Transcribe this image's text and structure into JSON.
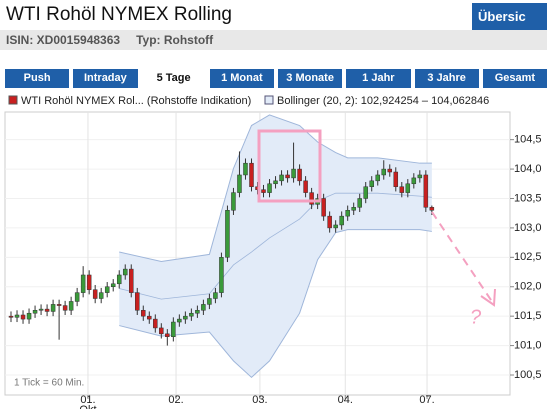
{
  "header": {
    "title": "WTI Rohöl NYMEX Rolling",
    "button": "Übersic",
    "isin": "ISIN: XD0015948363",
    "typ": "Typ: Rohstoff"
  },
  "tabs": {
    "items": [
      "Push",
      "Intraday",
      "5 Tage",
      "1 Monat",
      "3 Monate",
      "1 Jahr",
      "3 Jahre",
      "Gesamt"
    ],
    "active": 2
  },
  "chart_data": {
    "type": "candlestick",
    "series": [
      {
        "name": "WTI Rohöl NYMEX Rol... (Rohstoffe Indikation)",
        "up_color": "#3a9a3a",
        "down_color": "#c82020",
        "open": [
          101.5,
          101.48,
          101.52,
          101.45,
          101.55,
          101.6,
          101.62,
          101.58,
          101.7,
          101.68,
          101.6,
          101.75,
          101.9,
          102.2,
          101.95,
          101.8,
          101.9,
          102.0,
          102.05,
          102.2,
          102.3,
          101.9,
          101.6,
          101.5,
          101.45,
          101.3,
          101.2,
          101.15,
          101.4,
          101.45,
          101.5,
          101.55,
          101.6,
          101.7,
          101.8,
          101.9,
          102.5,
          103.3,
          103.6,
          103.9,
          104.1,
          103.7,
          103.65,
          103.6,
          103.75,
          103.8,
          103.9,
          103.85,
          104.0,
          103.8,
          103.6,
          103.4,
          103.5,
          103.2,
          103.0,
          103.05,
          103.2,
          103.3,
          103.35,
          103.5,
          103.7,
          103.8,
          103.9,
          104.0,
          103.95,
          103.7,
          103.6,
          103.75,
          103.85,
          103.9,
          103.35
        ],
        "high": [
          101.58,
          101.6,
          101.6,
          101.63,
          101.68,
          101.7,
          101.7,
          101.78,
          101.78,
          101.76,
          101.83,
          101.98,
          102.35,
          102.28,
          102.03,
          101.98,
          102.08,
          102.13,
          102.28,
          102.38,
          102.38,
          101.98,
          101.68,
          101.58,
          101.53,
          101.38,
          101.28,
          101.48,
          101.53,
          101.58,
          101.63,
          101.68,
          101.78,
          101.88,
          101.98,
          102.58,
          103.38,
          103.68,
          104.3,
          104.18,
          104.18,
          103.78,
          103.73,
          103.83,
          103.88,
          103.98,
          103.98,
          104.45,
          104.08,
          103.88,
          103.68,
          103.58,
          103.58,
          103.28,
          103.13,
          103.28,
          103.38,
          103.43,
          103.58,
          103.78,
          103.88,
          103.98,
          104.15,
          104.08,
          104.03,
          103.78,
          103.83,
          103.93,
          103.98,
          103.98,
          103.38
        ],
        "low": [
          101.4,
          101.4,
          101.37,
          101.37,
          101.47,
          101.52,
          101.5,
          101.5,
          101.1,
          101.52,
          101.52,
          101.67,
          101.82,
          101.87,
          101.72,
          101.72,
          101.82,
          101.92,
          101.97,
          102.12,
          101.82,
          101.52,
          101.42,
          101.37,
          101.22,
          101.12,
          101.0,
          101.07,
          101.32,
          101.37,
          101.42,
          101.47,
          101.52,
          101.62,
          101.72,
          101.82,
          102.42,
          103.22,
          103.52,
          103.82,
          103.62,
          103.57,
          103.52,
          103.52,
          103.67,
          103.72,
          103.77,
          103.77,
          103.72,
          103.52,
          103.32,
          103.32,
          103.12,
          102.92,
          102.92,
          102.97,
          103.12,
          103.22,
          103.27,
          103.42,
          103.62,
          103.72,
          103.82,
          103.87,
          103.62,
          103.52,
          103.52,
          103.67,
          103.77,
          103.27,
          103.22
        ],
        "close": [
          101.48,
          101.52,
          101.45,
          101.55,
          101.6,
          101.62,
          101.58,
          101.7,
          101.68,
          101.6,
          101.75,
          101.9,
          102.2,
          101.95,
          101.8,
          101.9,
          102.0,
          102.05,
          102.2,
          102.3,
          101.9,
          101.6,
          101.5,
          101.45,
          101.3,
          101.2,
          101.15,
          101.4,
          101.45,
          101.5,
          101.55,
          101.6,
          101.7,
          101.8,
          101.9,
          102.5,
          103.3,
          103.6,
          103.9,
          104.1,
          103.7,
          103.65,
          103.6,
          103.75,
          103.8,
          103.9,
          103.85,
          104.0,
          103.8,
          103.6,
          103.4,
          103.5,
          103.2,
          103.0,
          103.05,
          103.2,
          103.3,
          103.35,
          103.5,
          103.7,
          103.8,
          103.9,
          104.0,
          103.95,
          103.7,
          103.6,
          103.75,
          103.85,
          103.9,
          103.35,
          103.3
        ]
      }
    ],
    "bollinger": {
      "name": "Bollinger (20, 2): 102,924254 – 104,062846",
      "color": "#9fb6da",
      "fill": "#e2ebf8",
      "x": [
        18,
        25,
        33,
        37,
        40,
        43,
        48,
        51,
        54,
        56,
        61,
        68,
        70
      ],
      "upper": [
        102.59,
        102.43,
        102.55,
        104.01,
        104.74,
        104.92,
        104.74,
        104.46,
        104.28,
        104.19,
        104.19,
        104.1,
        104.1
      ],
      "middle": [
        101.97,
        101.79,
        101.88,
        102.37,
        102.59,
        102.83,
        103.15,
        103.46,
        103.59,
        103.59,
        103.59,
        103.54,
        103.52
      ],
      "lower": [
        101.34,
        101.16,
        101.23,
        100.74,
        100.46,
        100.74,
        101.55,
        102.46,
        102.92,
        102.97,
        102.97,
        102.97,
        102.94
      ]
    },
    "xlim": [
      -1,
      83
    ],
    "xticks": [
      {
        "value": 12.8,
        "label": "01."
      },
      {
        "value": 27.45,
        "label": "02."
      },
      {
        "value": 41.4,
        "label": "03."
      },
      {
        "value": 55.6,
        "label": "04."
      },
      {
        "value": 69.2,
        "label": "07."
      }
    ],
    "x_month_label": "Okt",
    "ylim": [
      100.16,
      104.97
    ],
    "yticks": [
      {
        "value": 100.5,
        "label": "100,5"
      },
      {
        "value": 101,
        "label": "101,0"
      },
      {
        "value": 101.5,
        "label": "101,5"
      },
      {
        "value": 102,
        "label": "102,0"
      },
      {
        "value": 102.5,
        "label": "102,5"
      },
      {
        "value": 103,
        "label": "103,0"
      },
      {
        "value": 103.5,
        "label": "103,5"
      },
      {
        "value": 104,
        "label": "104,0"
      },
      {
        "value": 104.5,
        "label": "104,5"
      }
    ],
    "grid": true,
    "note": "1 Tick = 60 Min.",
    "annotation": "?"
  }
}
